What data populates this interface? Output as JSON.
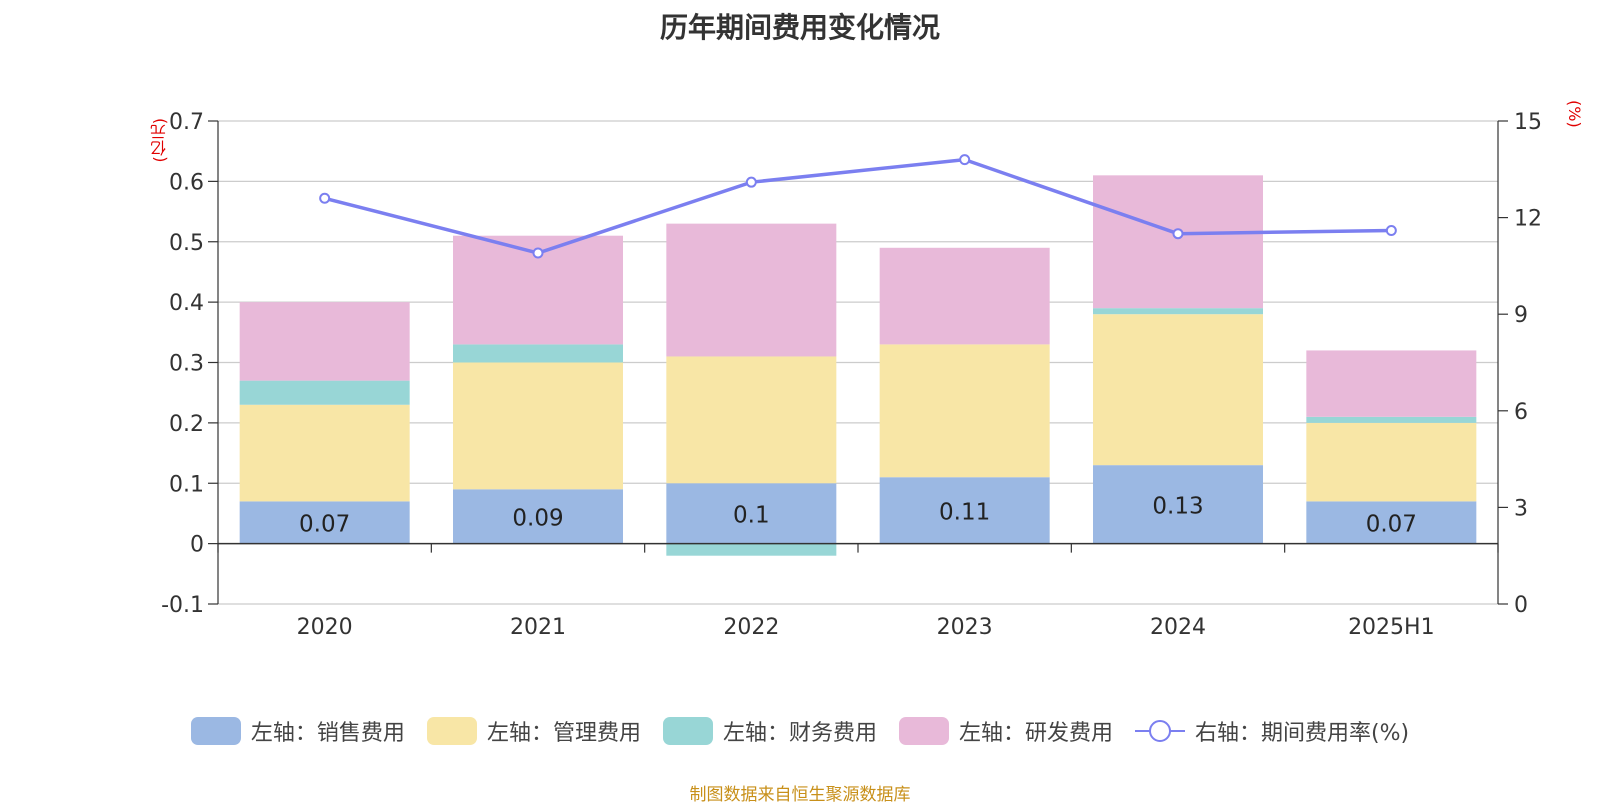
{
  "chart_data": {
    "type": "bar",
    "title": "历年期间费用变化情况",
    "categories": [
      "2020",
      "2021",
      "2022",
      "2023",
      "2024",
      "2025H1"
    ],
    "left_axis": {
      "unit": "(亿元)",
      "ylim": [
        -0.1,
        0.7
      ],
      "ticks": [
        "-0.1",
        "0",
        "0.1",
        "0.2",
        "0.3",
        "0.4",
        "0.5",
        "0.6",
        "0.7"
      ]
    },
    "right_axis": {
      "unit": "(%)",
      "ylim": [
        0,
        15
      ],
      "ticks": [
        "0",
        "3",
        "6",
        "9",
        "12",
        "15"
      ]
    },
    "series": [
      {
        "name": "左轴：销售费用",
        "color": "#9bb8e3",
        "values": [
          0.07,
          0.09,
          0.1,
          0.11,
          0.13,
          0.07
        ],
        "labels": [
          "0.07",
          "0.09",
          "0.1",
          "0.11",
          "0.13",
          "0.07"
        ]
      },
      {
        "name": "左轴：管理费用",
        "color": "#f8e6a6",
        "values": [
          0.16,
          0.21,
          0.21,
          0.22,
          0.25,
          0.13
        ]
      },
      {
        "name": "左轴：财务费用",
        "color": "#98d6d6",
        "values": [
          0.04,
          0.03,
          -0.02,
          0.0,
          0.01,
          0.01
        ]
      },
      {
        "name": "左轴：研发费用",
        "color": "#e8b9d9",
        "values": [
          0.13,
          0.18,
          0.22,
          0.16,
          0.22,
          0.11
        ]
      },
      {
        "name": "右轴：期间费用率(%)",
        "color": "#7b7ff0",
        "type": "line",
        "axis": "right",
        "values": [
          12.6,
          10.9,
          13.1,
          13.8,
          11.5,
          11.6
        ]
      }
    ],
    "grid": true,
    "legend_position": "bottom"
  },
  "source": "制图数据来自恒生聚源数据库"
}
